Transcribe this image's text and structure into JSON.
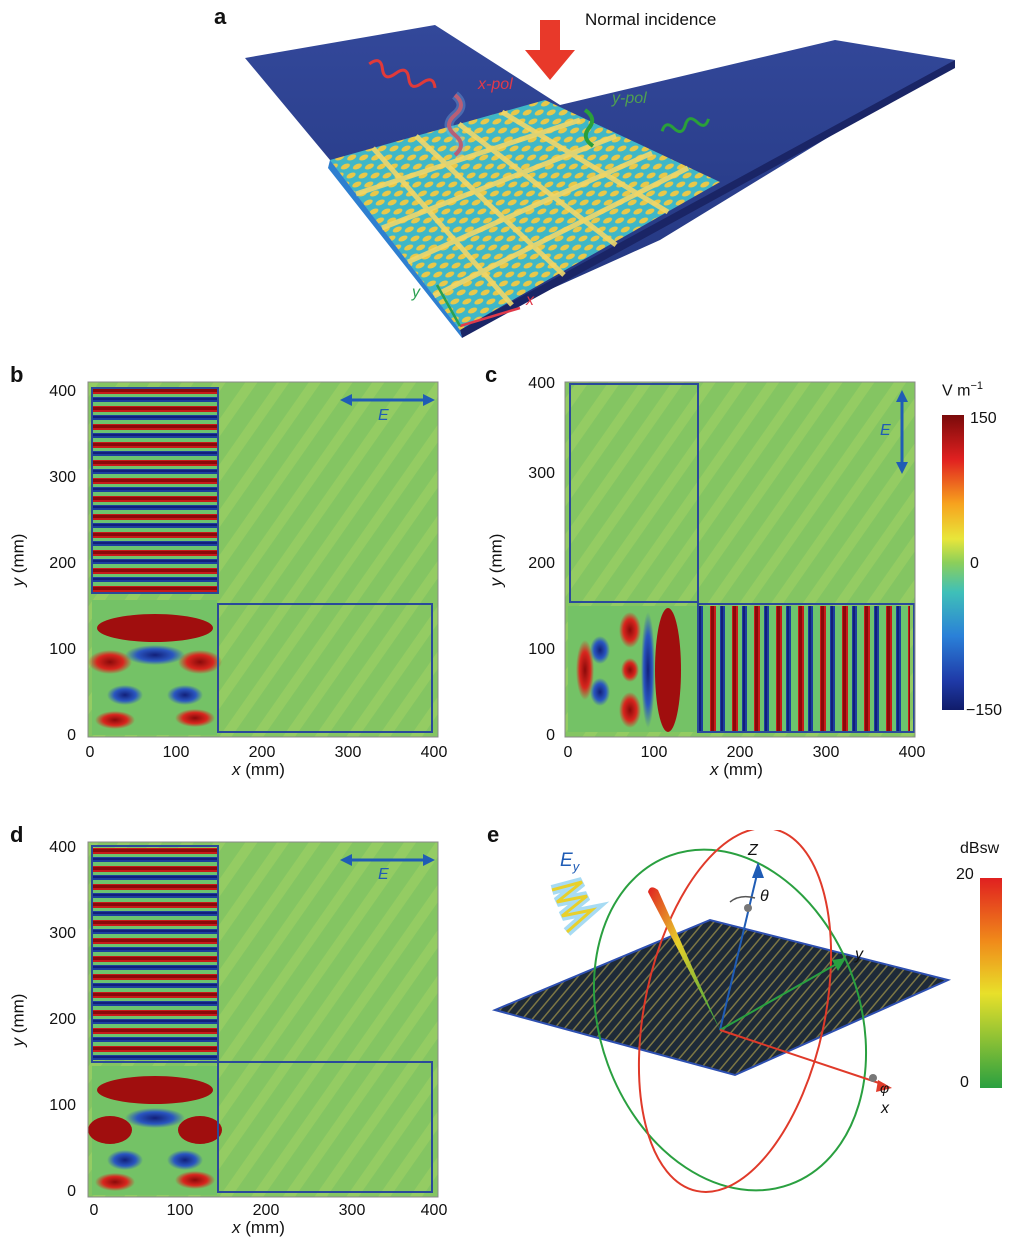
{
  "figure": {
    "panel_a": {
      "letter": "a",
      "normal_incidence": "Normal incidence",
      "x_pol": "x-pol",
      "y_pol": "y-pol",
      "axis_x": "x",
      "axis_y": "y"
    },
    "panel_b": {
      "letter": "b",
      "field_label": "E"
    },
    "panel_c": {
      "letter": "c",
      "field_label": "E",
      "colorbar_unit": "V m",
      "colorbar_unit_sup": "−1",
      "colorbar_ticks": [
        "150",
        "0",
        "−150"
      ]
    },
    "panel_d": {
      "letter": "d",
      "field_label": "E"
    },
    "panel_e": {
      "letter": "e",
      "field_label": "E",
      "field_sub": "y",
      "axis_z": "Z",
      "axis_y": "y",
      "axis_x": "x",
      "theta": "θ",
      "phi": "φ",
      "colorbar_unit": "dBsw",
      "colorbar_ticks": [
        "20",
        "0"
      ]
    },
    "axes": {
      "x_label_var": "x",
      "x_label_unit": " (mm)",
      "y_label_var": "y",
      "y_label_unit": " (mm)",
      "ticks": [
        "0",
        "100",
        "200",
        "300",
        "400"
      ]
    },
    "colors": {
      "substrate": "#2b3f8f",
      "metasurface_gold": "#e8c84a",
      "field_background": "#7fc462",
      "incidence_arrow": "#e8392a",
      "pol_arrow": "#1f5cb5"
    }
  }
}
